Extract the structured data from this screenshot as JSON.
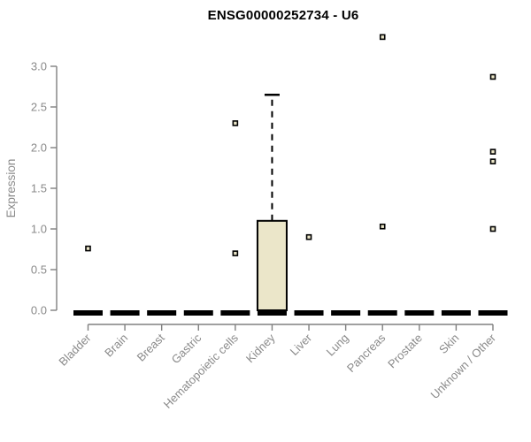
{
  "header": {
    "title": "ENSG00000252734 - U6"
  },
  "chart_data": {
    "type": "box",
    "title": "ENSG00000252734 - U6",
    "xlabel": "",
    "ylabel": "Expression",
    "grid": false,
    "legend": "none",
    "ylim": [
      0,
      3.45
    ],
    "y_ticks": [
      0.0,
      0.5,
      1.0,
      1.5,
      2.0,
      2.5,
      3.0
    ],
    "y_tick_labels": [
      "0.0",
      "0.5",
      "1.0",
      "1.5",
      "2.0",
      "2.5",
      "3.0"
    ],
    "categories": [
      "Bladder",
      "Brain",
      "Breast",
      "Gastric",
      "Hematopoietic cells",
      "Kidney",
      "Liver",
      "Lung",
      "Pancreas",
      "Prostate",
      "Skin",
      "Unknown / Other"
    ],
    "boxes": [
      {
        "category": "Bladder",
        "min": 0,
        "q1": 0,
        "median": 0,
        "q3": 0,
        "max": 0,
        "outliers": [
          0.76
        ]
      },
      {
        "category": "Brain",
        "min": 0,
        "q1": 0,
        "median": 0,
        "q3": 0,
        "max": 0,
        "outliers": []
      },
      {
        "category": "Breast",
        "min": 0,
        "q1": 0,
        "median": 0,
        "q3": 0,
        "max": 0,
        "outliers": []
      },
      {
        "category": "Gastric",
        "min": 0,
        "q1": 0,
        "median": 0,
        "q3": 0,
        "max": 0,
        "outliers": []
      },
      {
        "category": "Hematopoietic cells",
        "min": 0,
        "q1": 0,
        "median": 0,
        "q3": 0,
        "max": 0,
        "outliers": [
          0.7,
          2.3
        ]
      },
      {
        "category": "Kidney",
        "min": 0,
        "q1": 0,
        "median": 0,
        "q3": 1.1,
        "max": 2.65,
        "outliers": []
      },
      {
        "category": "Liver",
        "min": 0,
        "q1": 0,
        "median": 0,
        "q3": 0,
        "max": 0,
        "outliers": [
          0.9
        ]
      },
      {
        "category": "Lung",
        "min": 0,
        "q1": 0,
        "median": 0,
        "q3": 0,
        "max": 0,
        "outliers": []
      },
      {
        "category": "Pancreas",
        "min": 0,
        "q1": 0,
        "median": 0,
        "q3": 0,
        "max": 0,
        "outliers": [
          1.03,
          3.36
        ]
      },
      {
        "category": "Prostate",
        "min": 0,
        "q1": 0,
        "median": 0,
        "q3": 0,
        "max": 0,
        "outliers": []
      },
      {
        "category": "Skin",
        "min": 0,
        "q1": 0,
        "median": 0,
        "q3": 0,
        "max": 0,
        "outliers": []
      },
      {
        "category": "Unknown / Other",
        "min": 0,
        "q1": 0,
        "median": 0,
        "q3": 0,
        "max": 0,
        "outliers": [
          1.0,
          1.83,
          1.95,
          2.87
        ]
      }
    ],
    "colors": {
      "box_fill": "#ebe6c9",
      "box_border": "#000000",
      "median": "#000000",
      "whisker": "#000000",
      "outlier_fill": "#ebe6c9",
      "outlier_border": "#000000",
      "axis_line": "#808080",
      "tick_label": "#8a8a8a",
      "axis_label": "#8a8a8a",
      "title": "#000000",
      "background": "#ffffff"
    }
  }
}
